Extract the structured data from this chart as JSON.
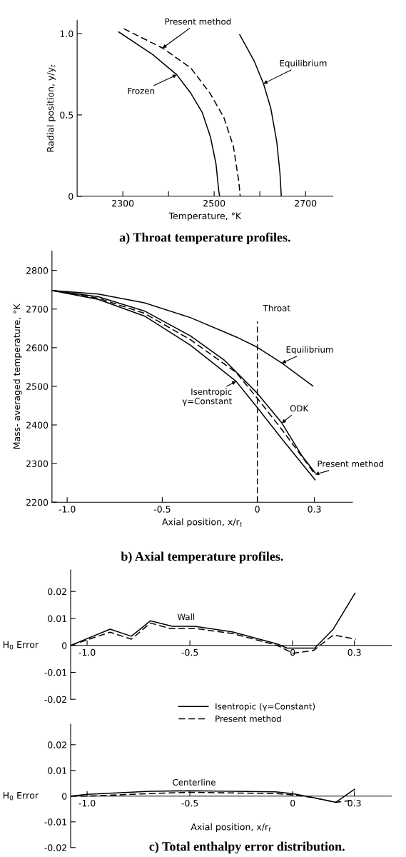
{
  "chart_data": [
    {
      "type": "line",
      "title": "a) Throat temperature profiles.",
      "xlabel": "Temperature, °K",
      "ylabel": "Radial position, y/y$_{t}$",
      "xlim": [
        2200,
        2760
      ],
      "ylim": [
        0,
        1.08
      ],
      "xticks": [
        2300,
        {
          "value": 2400,
          "label": null
        },
        2500,
        {
          "value": 2600,
          "label": null
        },
        2700
      ],
      "yticks": [
        {
          "value": 0,
          "label": "0"
        },
        0.5,
        {
          "value": 1.0,
          "label": "1.0"
        }
      ],
      "series": [
        {
          "name": "Frozen",
          "color": "#000000",
          "line_style": "solid",
          "x": [
            2291,
            2366,
            2418,
            2448,
            2474,
            2492,
            2504,
            2510,
            2512
          ],
          "values": [
            1.01,
            0.87,
            0.747,
            0.637,
            0.514,
            0.363,
            0.199,
            0.034,
            0
          ]
        },
        {
          "name": "Present method",
          "color": "#000000",
          "line_style": "dashed",
          "x": [
            2302,
            2387,
            2449,
            2490,
            2521,
            2542,
            2554,
            2557
          ],
          "values": [
            1.03,
            0.911,
            0.788,
            0.637,
            0.486,
            0.308,
            0.089,
            0
          ]
        },
        {
          "name": "Equilibrium",
          "color": "#000000",
          "line_style": "solid",
          "x": [
            2556,
            2588,
            2608,
            2624,
            2637,
            2644,
            2647
          ],
          "values": [
            0.993,
            0.829,
            0.692,
            0.541,
            0.336,
            0.144,
            0
          ]
        }
      ]
    },
    {
      "type": "line",
      "title": "b) Axial temperature profiles.",
      "xlabel": "Axial position, x/r$_{t}$",
      "ylabel": "Mass- averaged temperature, °K",
      "xlim": [
        -1.08,
        0.5
      ],
      "ylim": [
        2200,
        2850
      ],
      "xticks": [
        {
          "value": -1.0,
          "label": "-1.0"
        },
        {
          "value": -0.5,
          "label": "-0.5"
        },
        0,
        0.3
      ],
      "yticks": [
        2200,
        2300,
        2400,
        2500,
        2600,
        2700,
        2800
      ],
      "ref_lines": [
        {
          "axis": "x",
          "value": 0,
          "label": "Throat",
          "line_style": "dashed",
          "color": "#000000"
        }
      ],
      "series": [
        {
          "name": "Equilibrium",
          "color": "#000000",
          "line_style": "solid",
          "x": [
            -1.078,
            -0.836,
            -0.594,
            -0.353,
            -0.112,
            0,
            0.129,
            0.292
          ],
          "values": [
            2748,
            2739,
            2716,
            2678,
            2628,
            2601,
            2560,
            2501
          ]
        },
        {
          "name": "ODK",
          "color": "#000000",
          "line_style": "solid",
          "x": [
            -1.078,
            -0.836,
            -0.594,
            -0.353,
            -0.172,
            0,
            0.129,
            0.232,
            0.304
          ],
          "values": [
            2748,
            2732,
            2695,
            2631,
            2567,
            2482,
            2405,
            2322,
            2276
          ]
        },
        {
          "name": "Present method",
          "color": "#000000",
          "line_style": "dashed",
          "x": [
            -1.078,
            -0.836,
            -0.594,
            -0.353,
            -0.112,
            0,
            0.129,
            0.304
          ],
          "values": [
            2748,
            2728,
            2689,
            2621,
            2536,
            2469,
            2388,
            2272
          ]
        },
        {
          "name": "Isentropic\nγ=Constant",
          "color": "#000000",
          "line_style": "solid",
          "x": [
            -1.078,
            -0.836,
            -0.594,
            -0.353,
            -0.112,
            0,
            0.129,
            0.304
          ],
          "values": [
            2748,
            2725,
            2682,
            2607,
            2513,
            2445,
            2364,
            2258
          ]
        }
      ]
    },
    {
      "type": "line",
      "ylabel": "H$_{0}$ Error",
      "legend": "bottom",
      "xlim": [
        -1.08,
        0.48
      ],
      "ylim": [
        -0.02,
        0.028
      ],
      "xticks": [
        {
          "value": -1.0,
          "label": "-1.0"
        },
        {
          "value": -0.5,
          "label": "-0.5"
        },
        0,
        0.3
      ],
      "yticks": [
        {
          "value": -0.02,
          "label": "-0.02"
        },
        {
          "value": -0.01,
          "label": "-0.01"
        },
        0,
        0.01,
        0.02
      ],
      "annotations": [
        "Wall"
      ],
      "series": [
        {
          "name": "Isentropic (γ=Constant)",
          "color": "#000000",
          "line_style": "solid",
          "x": [
            -1.08,
            -0.888,
            -0.785,
            -0.692,
            -0.585,
            -0.476,
            -0.294,
            -0.075,
            -0.027,
            0.107,
            0.198,
            0.303
          ],
          "values": [
            0,
            0.006,
            0.0034,
            0.0091,
            0.0071,
            0.0071,
            0.005,
            0.0005,
            -0.001,
            -0.001,
            0.0061,
            0.0194
          ]
        },
        {
          "name": "Present method",
          "color": "#000000",
          "line_style": "dashed",
          "x": [
            -1.08,
            -0.888,
            -0.785,
            -0.692,
            -0.597,
            -0.476,
            -0.294,
            -0.075,
            0,
            0.101,
            0.198,
            0.307
          ],
          "values": [
            0,
            0.0049,
            0.0023,
            0.0083,
            0.0063,
            0.0063,
            0.0044,
            0,
            -0.0029,
            -0.0019,
            0.0039,
            0.0023
          ]
        }
      ]
    },
    {
      "type": "line",
      "title": "c) Total enthalpy error distribution.",
      "xlabel": "Axial position, x/r$_{t}$",
      "ylabel": "H$_{0}$ Error",
      "xlim": [
        -1.08,
        0.48
      ],
      "ylim": [
        -0.02,
        0.028
      ],
      "xticks": [
        {
          "value": -1.0,
          "label": "-1.0"
        },
        {
          "value": -0.5,
          "label": "-0.5"
        },
        0,
        0.3
      ],
      "yticks": [
        {
          "value": -0.02,
          "label": "-0.02"
        },
        {
          "value": -0.01,
          "label": "-0.01"
        },
        0,
        0.01,
        0.02
      ],
      "annotations": [
        "Centerline"
      ],
      "series": [
        {
          "color": "#000000",
          "line_style": "solid",
          "x": [
            -1.08,
            -1.0,
            -0.694,
            -0.5,
            -0.084,
            0,
            0.095,
            0.21,
            0.301
          ],
          "values": [
            0,
            0.0007,
            0.0019,
            0.0021,
            0.0017,
            0.001,
            -0.0005,
            -0.0024,
            0.0027
          ]
        },
        {
          "color": "#000000",
          "line_style": "dashed",
          "x": [
            -1.08,
            -1.0,
            -0.694,
            -0.5,
            -0.084,
            0,
            0.095,
            0.21,
            0.301
          ],
          "values": [
            0,
            0,
            0.001,
            0.0015,
            0.001,
            0.0005,
            -0.0005,
            -0.0024,
            -0.0015
          ]
        }
      ]
    }
  ]
}
